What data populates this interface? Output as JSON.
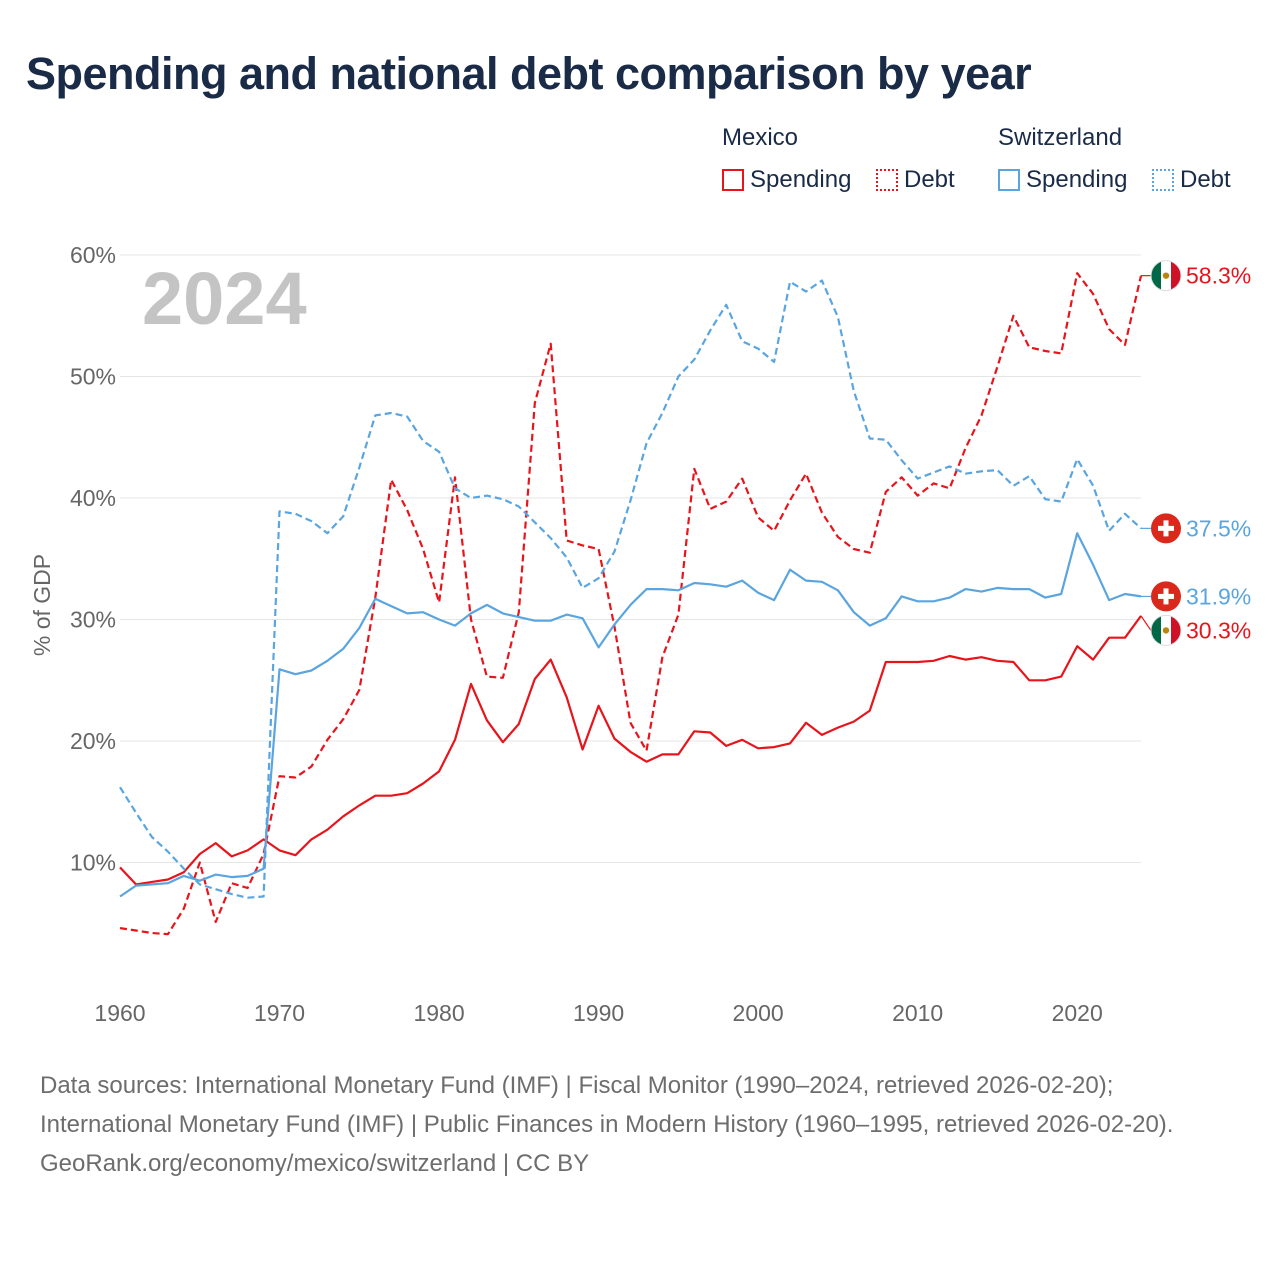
{
  "title": "Spending and national debt comparison by year",
  "legend": {
    "mexico": {
      "name": "Mexico",
      "spending": "Spending",
      "debt": "Debt"
    },
    "switzerland": {
      "name": "Switzerland",
      "spending": "Spending",
      "debt": "Debt"
    }
  },
  "colors": {
    "mexico": "#e8141b",
    "switzerland": "#5aa5e0",
    "year_watermark": "#c4c4c4",
    "axis_text": "#666666"
  },
  "chart_data": {
    "type": "line",
    "title": "Spending and national debt comparison by year",
    "year_label": "2024",
    "ylabel": "% of GDP",
    "xlabel": "",
    "ylim": [
      0,
      60
    ],
    "xlim": [
      1960,
      2024
    ],
    "yticks": [
      10,
      20,
      30,
      40,
      50,
      60
    ],
    "ytick_labels": [
      "10%",
      "20%",
      "30%",
      "40%",
      "50%",
      "60%"
    ],
    "xticks": [
      1960,
      1970,
      1980,
      1990,
      2000,
      2010,
      2020
    ],
    "xtick_labels": [
      "1960",
      "1970",
      "1980",
      "1990",
      "2000",
      "2010",
      "2020"
    ],
    "grid": true,
    "x_start": 1960,
    "series": [
      {
        "name": "Mexico Spending",
        "country": "mexico",
        "style": "solid",
        "end_label": "30.3%",
        "values": [
          9.6,
          8.2,
          8.4,
          8.6,
          9.2,
          10.7,
          11.6,
          10.5,
          11.0,
          11.9,
          11.0,
          10.6,
          11.9,
          12.7,
          13.8,
          14.7,
          15.5,
          15.5,
          15.7,
          16.5,
          17.5,
          20.1,
          24.7,
          21.7,
          19.9,
          21.4,
          25.1,
          26.7,
          23.6,
          19.3,
          22.9,
          20.2,
          19.1,
          18.3,
          18.9,
          18.9,
          20.8,
          20.7,
          19.6,
          20.1,
          19.4,
          19.5,
          19.8,
          21.5,
          20.5,
          21.1,
          21.6,
          22.5,
          26.5,
          26.5,
          26.5,
          26.6,
          27.0,
          26.7,
          26.9,
          26.6,
          26.5,
          25.0,
          25.0,
          25.3,
          27.8,
          26.7,
          28.5,
          28.5,
          30.3
        ]
      },
      {
        "name": "Mexico Debt",
        "country": "mexico",
        "style": "dashed",
        "end_label": "58.3%",
        "values": [
          4.6,
          4.4,
          4.2,
          4.1,
          6.2,
          10.0,
          5.1,
          8.3,
          7.9,
          10.7,
          17.1,
          17.0,
          17.9,
          20.1,
          21.8,
          24.2,
          31.8,
          41.5,
          39.0,
          35.8,
          31.4,
          41.7,
          30.0,
          25.3,
          25.2,
          30.6,
          47.8,
          52.7,
          36.5,
          36.1,
          35.8,
          29.4,
          21.5,
          19.2,
          26.9,
          30.4,
          42.4,
          39.1,
          39.7,
          41.6,
          38.4,
          37.3,
          39.8,
          42.0,
          38.8,
          36.8,
          35.8,
          35.5,
          40.5,
          41.7,
          40.2,
          41.2,
          40.8,
          44.1,
          46.8,
          50.8,
          55.0,
          52.4,
          52.1,
          51.9,
          58.5,
          56.8,
          53.9,
          52.6,
          58.3
        ]
      },
      {
        "name": "Switzerland Spending",
        "country": "switzerland",
        "style": "solid",
        "end_label": "31.9%",
        "values": [
          7.2,
          8.1,
          8.2,
          8.3,
          8.9,
          8.5,
          9.0,
          8.8,
          8.9,
          9.5,
          25.9,
          25.5,
          25.8,
          26.6,
          27.6,
          29.3,
          31.7,
          31.1,
          30.5,
          30.6,
          30.0,
          29.5,
          30.5,
          31.2,
          30.5,
          30.2,
          29.9,
          29.9,
          30.4,
          30.1,
          27.7,
          29.6,
          31.2,
          32.5,
          32.5,
          32.4,
          33.0,
          32.9,
          32.7,
          33.2,
          32.2,
          31.6,
          34.1,
          33.2,
          33.1,
          32.4,
          30.6,
          29.5,
          30.1,
          31.9,
          31.5,
          31.5,
          31.8,
          32.5,
          32.3,
          32.6,
          32.5,
          32.5,
          31.8,
          32.1,
          37.1,
          34.5,
          31.6,
          32.1,
          31.9
        ]
      },
      {
        "name": "Switzerland Debt",
        "country": "switzerland",
        "style": "dashed",
        "end_label": "37.5%",
        "values": [
          16.2,
          14.1,
          12.1,
          10.9,
          9.5,
          8.2,
          7.8,
          7.4,
          7.1,
          7.2,
          38.9,
          38.7,
          38.1,
          37.1,
          38.5,
          42.5,
          46.8,
          47.0,
          46.7,
          44.7,
          43.8,
          40.8,
          40.0,
          40.2,
          39.9,
          39.3,
          38.0,
          36.7,
          35.1,
          32.6,
          33.4,
          35.6,
          39.8,
          44.5,
          47.0,
          50.0,
          51.4,
          53.8,
          55.9,
          52.9,
          52.3,
          51.2,
          57.8,
          57.0,
          57.9,
          54.9,
          48.8,
          44.9,
          44.8,
          43.1,
          41.6,
          42.1,
          42.6,
          42.0,
          42.2,
          42.3,
          41.0,
          41.8,
          39.9,
          39.7,
          43.2,
          41.0,
          37.3,
          38.7,
          37.5
        ]
      }
    ]
  },
  "footer": {
    "sources": "Data sources: International Monetary Fund (IMF) | Fiscal Monitor (1990–2024, retrieved 2026-02-20); International Monetary Fund (IMF) | Public Finances in Modern History (1960–1995, retrieved 2026-02-20).",
    "credit": "GeoRank.org/economy/mexico/switzerland | CC BY"
  }
}
